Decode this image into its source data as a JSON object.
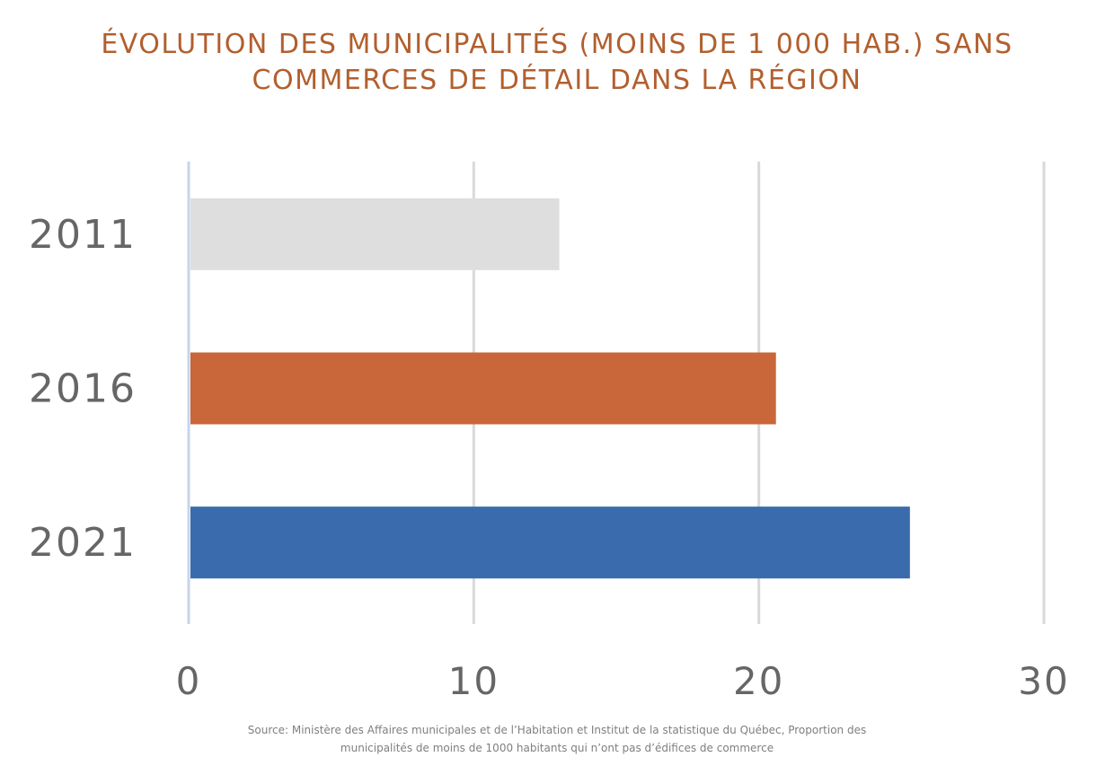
{
  "chart_data": {
    "type": "bar",
    "orientation": "horizontal",
    "title": "ÉVOLUTION DES MUNICIPALITÉS (MOINS DE 1 000 HAB.) SANS COMMERCES DE DÉTAIL DANS LA RÉGION",
    "categories": [
      "2011",
      "2016",
      "2021"
    ],
    "values": [
      13,
      20.6,
      25.3
    ],
    "colors": [
      "#dedede",
      "#c9663a",
      "#3a6cad"
    ],
    "xlim": [
      0,
      30
    ],
    "xticks": [
      "0",
      "10",
      "20",
      "30"
    ],
    "grid": true,
    "legend": "none",
    "source": "Source: Ministère des Affaires municipales et de l’Habitation et Institut de la statistique du Québec, Proportion des municipalités de moins de 1000 habitants qui n’ont pas d’édifices de commerce"
  }
}
